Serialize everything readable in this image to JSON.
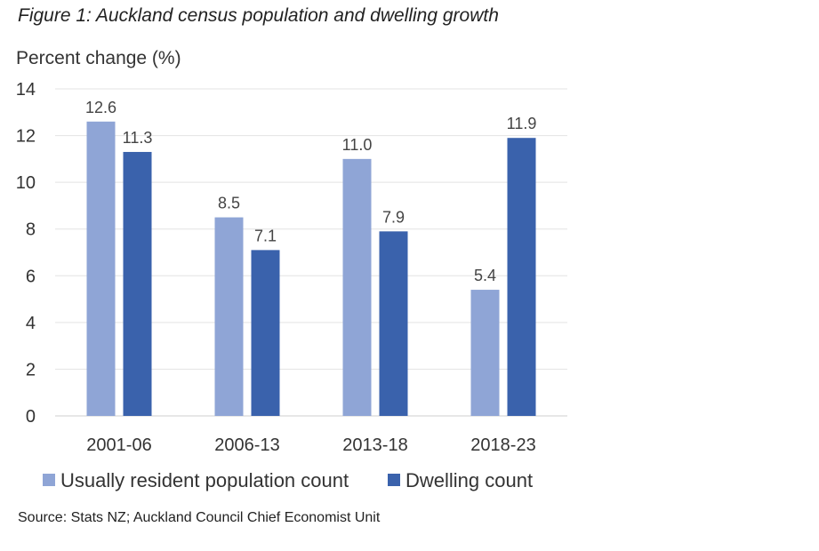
{
  "chart_data": {
    "type": "bar",
    "title": "Figure 1: Auckland census population and dwelling growth",
    "ylabel": "Percent change (%)",
    "xlabel": "",
    "categories": [
      "2001-06",
      "2006-13",
      "2013-18",
      "2018-23"
    ],
    "series": [
      {
        "name": "Usually resident population count",
        "values": [
          12.6,
          8.5,
          11.0,
          5.4
        ],
        "color": "#8FA5D6"
      },
      {
        "name": "Dwelling count",
        "values": [
          11.3,
          7.1,
          7.9,
          11.9
        ],
        "color": "#3A62AC"
      }
    ],
    "ylim": [
      0,
      14
    ],
    "yticks": [
      0,
      2,
      4,
      6,
      8,
      10,
      12,
      14
    ],
    "grid": true,
    "legend": "bottom",
    "data_labels": true,
    "source": "Source: Stats NZ; Auckland Council Chief Economist Unit"
  }
}
